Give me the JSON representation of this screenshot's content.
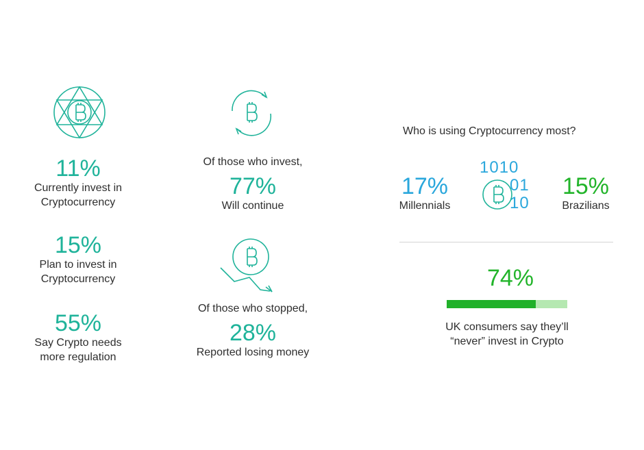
{
  "colors": {
    "teal": "#1fb39a",
    "blue": "#2aa7dc",
    "green": "#22b42a",
    "bar_light": "#b5e8b1"
  },
  "col1": {
    "icon": "globe-bitcoin-icon",
    "stats": [
      {
        "value": "11%",
        "line1": "Currently invest in",
        "line2": "Cryptocurrency"
      },
      {
        "value": "15%",
        "line1": "Plan to invest in",
        "line2": "Cryptocurrency"
      },
      {
        "value": "55%",
        "line1": "Say Crypto needs",
        "line2": "more regulation"
      }
    ]
  },
  "col2": {
    "continue": {
      "icon": "bitcoin-cycle-icon",
      "intro": "Of those who invest,",
      "value": "77%",
      "label": "Will continue"
    },
    "stopped": {
      "icon": "bitcoin-decline-icon",
      "intro": "Of those who stopped,",
      "value": "28%",
      "label": "Reported losing money"
    }
  },
  "col3": {
    "heading": "Who is using Cryptocurrency most?",
    "left": {
      "value": "17%",
      "label": "Millennials"
    },
    "right": {
      "value": "15%",
      "label": "Brazilians"
    },
    "binary_icon": {
      "icon": "bitcoin-binary-icon",
      "row1": "1010",
      "row2": "01",
      "row3": "10"
    },
    "uk": {
      "value": "74%",
      "fraction": 0.74,
      "line1": "UK consumers say they’ll",
      "line2": "“never” invest in Crypto"
    }
  }
}
